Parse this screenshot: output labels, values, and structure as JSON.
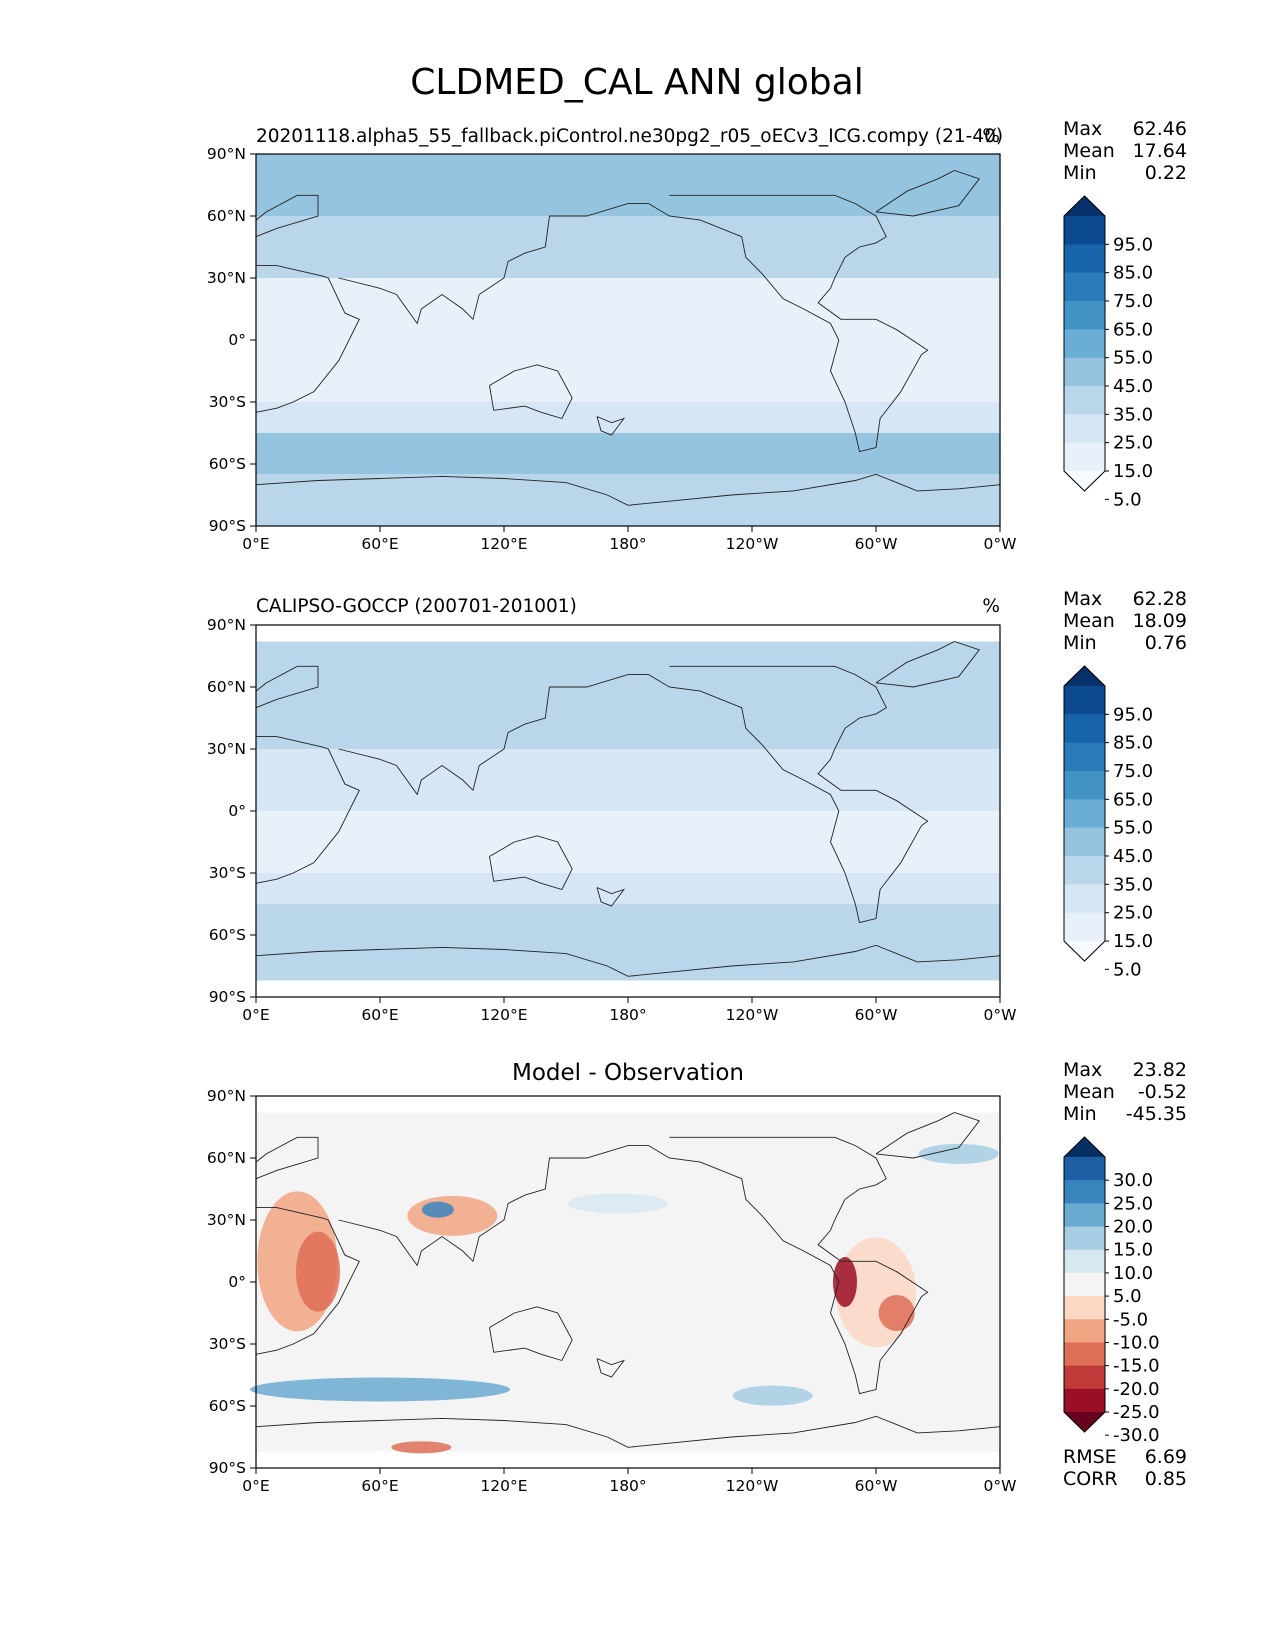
{
  "figure": {
    "title": "CLDMED_CAL ANN global"
  },
  "chart_data": [
    {
      "type": "heatmap",
      "title": "20201118.alpha5_55_fallback.piControl.ne30pg2_r05_oECv3_ICG.compy (21-40)",
      "units": "%",
      "stats": [
        {
          "label": "Max",
          "value": "62.46"
        },
        {
          "label": "Mean",
          "value": "17.64"
        },
        {
          "label": "Min",
          "value": "0.22"
        }
      ],
      "x_ticks": [
        "0°E",
        "60°E",
        "120°E",
        "180°",
        "120°W",
        "60°W",
        "0°W"
      ],
      "y_ticks": [
        "90°N",
        "60°N",
        "30°N",
        "0°",
        "30°S",
        "60°S",
        "90°S"
      ],
      "xlim": [
        0,
        360
      ],
      "ylim": [
        -90,
        90
      ],
      "colorbar": {
        "labels": [
          "95.0",
          "85.0",
          "75.0",
          "65.0",
          "55.0",
          "45.0",
          "35.0",
          "25.0",
          "15.0",
          "5.0"
        ],
        "colors": [
          "#08306b",
          "#0b4a91",
          "#1764ab",
          "#2b7bba",
          "#4292c6",
          "#6aaed6",
          "#94c4df",
          "#bad6eb",
          "#d6e6f4",
          "#e8f1fa",
          "#f7fbff"
        ]
      },
      "bands": [
        {
          "lat_range": [
            90,
            60
          ],
          "value": 35
        },
        {
          "lat_range": [
            60,
            30
          ],
          "value": 28
        },
        {
          "lat_range": [
            30,
            0
          ],
          "value": 14
        },
        {
          "lat_range": [
            0,
            -30
          ],
          "value": 10
        },
        {
          "lat_range": [
            -30,
            -45
          ],
          "value": 22
        },
        {
          "lat_range": [
            -45,
            -65
          ],
          "value": 42
        },
        {
          "lat_range": [
            -65,
            -90
          ],
          "value": 26
        }
      ]
    },
    {
      "type": "heatmap",
      "title": "CALIPSO-GOCCP (200701-201001)",
      "units": "%",
      "stats": [
        {
          "label": "Max",
          "value": "62.28"
        },
        {
          "label": "Mean",
          "value": "18.09"
        },
        {
          "label": "Min",
          "value": "0.76"
        }
      ],
      "x_ticks": [
        "0°E",
        "60°E",
        "120°E",
        "180°",
        "120°W",
        "60°W",
        "0°W"
      ],
      "y_ticks": [
        "90°N",
        "60°N",
        "30°N",
        "0°",
        "30°S",
        "60°S",
        "90°S"
      ],
      "xlim": [
        0,
        360
      ],
      "ylim": [
        -90,
        90
      ],
      "colorbar": {
        "labels": [
          "95.0",
          "85.0",
          "75.0",
          "65.0",
          "55.0",
          "45.0",
          "35.0",
          "25.0",
          "15.0",
          "5.0"
        ],
        "colors": [
          "#08306b",
          "#0b4a91",
          "#1764ab",
          "#2b7bba",
          "#4292c6",
          "#6aaed6",
          "#94c4df",
          "#bad6eb",
          "#d6e6f4",
          "#e8f1fa",
          "#f7fbff"
        ]
      },
      "bands": [
        {
          "lat_range": [
            82,
            60
          ],
          "value": 28
        },
        {
          "lat_range": [
            60,
            30
          ],
          "value": 26
        },
        {
          "lat_range": [
            30,
            0
          ],
          "value": 18
        },
        {
          "lat_range": [
            0,
            -30
          ],
          "value": 14
        },
        {
          "lat_range": [
            -30,
            -45
          ],
          "value": 22
        },
        {
          "lat_range": [
            -45,
            -82
          ],
          "value": 32
        }
      ]
    },
    {
      "type": "heatmap",
      "title": "Model - Observation",
      "units": "",
      "stats": [
        {
          "label": "Max",
          "value": "23.82"
        },
        {
          "label": "Mean",
          "value": "-0.52"
        },
        {
          "label": "Min",
          "value": "-45.35"
        }
      ],
      "extra_stats": [
        {
          "label": "RMSE",
          "value": "6.69"
        },
        {
          "label": "CORR",
          "value": "0.85"
        }
      ],
      "x_ticks": [
        "0°E",
        "60°E",
        "120°E",
        "180°",
        "120°W",
        "60°W",
        "0°W"
      ],
      "y_ticks": [
        "90°N",
        "60°N",
        "30°N",
        "0°",
        "30°S",
        "60°S",
        "90°S"
      ],
      "xlim": [
        0,
        360
      ],
      "ylim": [
        -90,
        90
      ],
      "colorbar": {
        "labels": [
          "30.0",
          "25.0",
          "20.0",
          "15.0",
          "10.0",
          "5.0",
          "-5.0",
          "-10.0",
          "-15.0",
          "-20.0",
          "-25.0",
          "-30.0"
        ],
        "colors": [
          "#053061",
          "#1f5fa6",
          "#3a84bd",
          "#6aa9d0",
          "#a6cde3",
          "#d6e8f2",
          "#f4f4f4",
          "#fbd7c4",
          "#f2a583",
          "#de6f57",
          "#c13a3a",
          "#9a0e26",
          "#67001f"
        ]
      },
      "bands": [
        {
          "lat_range": [
            82,
            -82
          ],
          "value": 0
        }
      ]
    }
  ]
}
